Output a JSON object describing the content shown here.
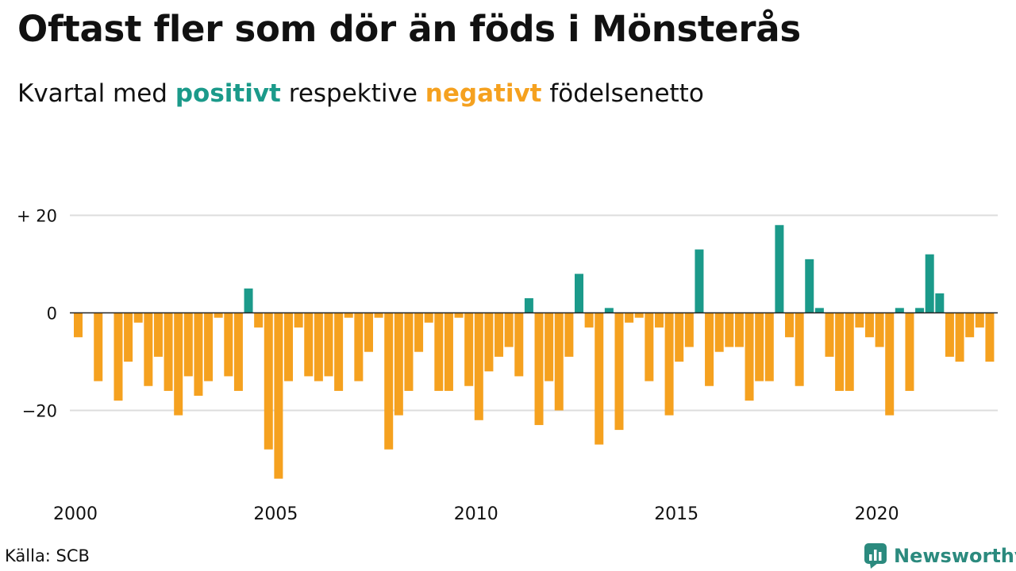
{
  "header": {
    "title": "Oftast fler som dör än föds i Mönsterås",
    "subtitle_pre": "Kvartal med",
    "subtitle_positive": "positivt",
    "subtitle_mid": "respektive",
    "subtitle_negative": "negativt",
    "subtitle_post": "födelsenetto"
  },
  "footer": {
    "source": "Källa: SCB",
    "brand": "Newsworthy"
  },
  "colors": {
    "positive": "#1b9a8a",
    "negative": "#f5a11f",
    "grid": "#dddddd",
    "zero_line": "#222222",
    "brand": "#2b8a7e"
  },
  "chart_data": {
    "type": "bar",
    "x_start": "2000-Q1",
    "x_ticks": [
      "2000",
      "2005",
      "2010",
      "2015",
      "2020"
    ],
    "y_ticks": [
      {
        "value": 20,
        "label": "+ 20"
      },
      {
        "value": 0,
        "label": "0"
      },
      {
        "value": -20,
        "label": "−20"
      }
    ],
    "ylim": [
      -38,
      30
    ],
    "grid": true,
    "values": [
      -5,
      0,
      -14,
      0,
      -18,
      -10,
      -2,
      -15,
      -9,
      -16,
      -21,
      -13,
      -17,
      -14,
      -1,
      -13,
      -16,
      5,
      -3,
      -28,
      -34,
      -14,
      -3,
      -13,
      -14,
      -13,
      -16,
      -1,
      -14,
      -8,
      -1,
      -28,
      -21,
      -16,
      -8,
      -2,
      -16,
      -16,
      -1,
      -15,
      -22,
      -12,
      -9,
      -7,
      -13,
      3,
      -23,
      -14,
      -20,
      -9,
      8,
      -3,
      -27,
      1,
      -24,
      -2,
      -1,
      -14,
      -3,
      -21,
      -10,
      -7,
      13,
      -15,
      -8,
      -7,
      -7,
      -18,
      -14,
      -14,
      18,
      -5,
      -15,
      11,
      1,
      -9,
      -16,
      -16,
      -3,
      -5,
      -7,
      -21,
      1,
      -16,
      1,
      12,
      4,
      -9,
      -10,
      -5,
      -3,
      -10
    ]
  }
}
